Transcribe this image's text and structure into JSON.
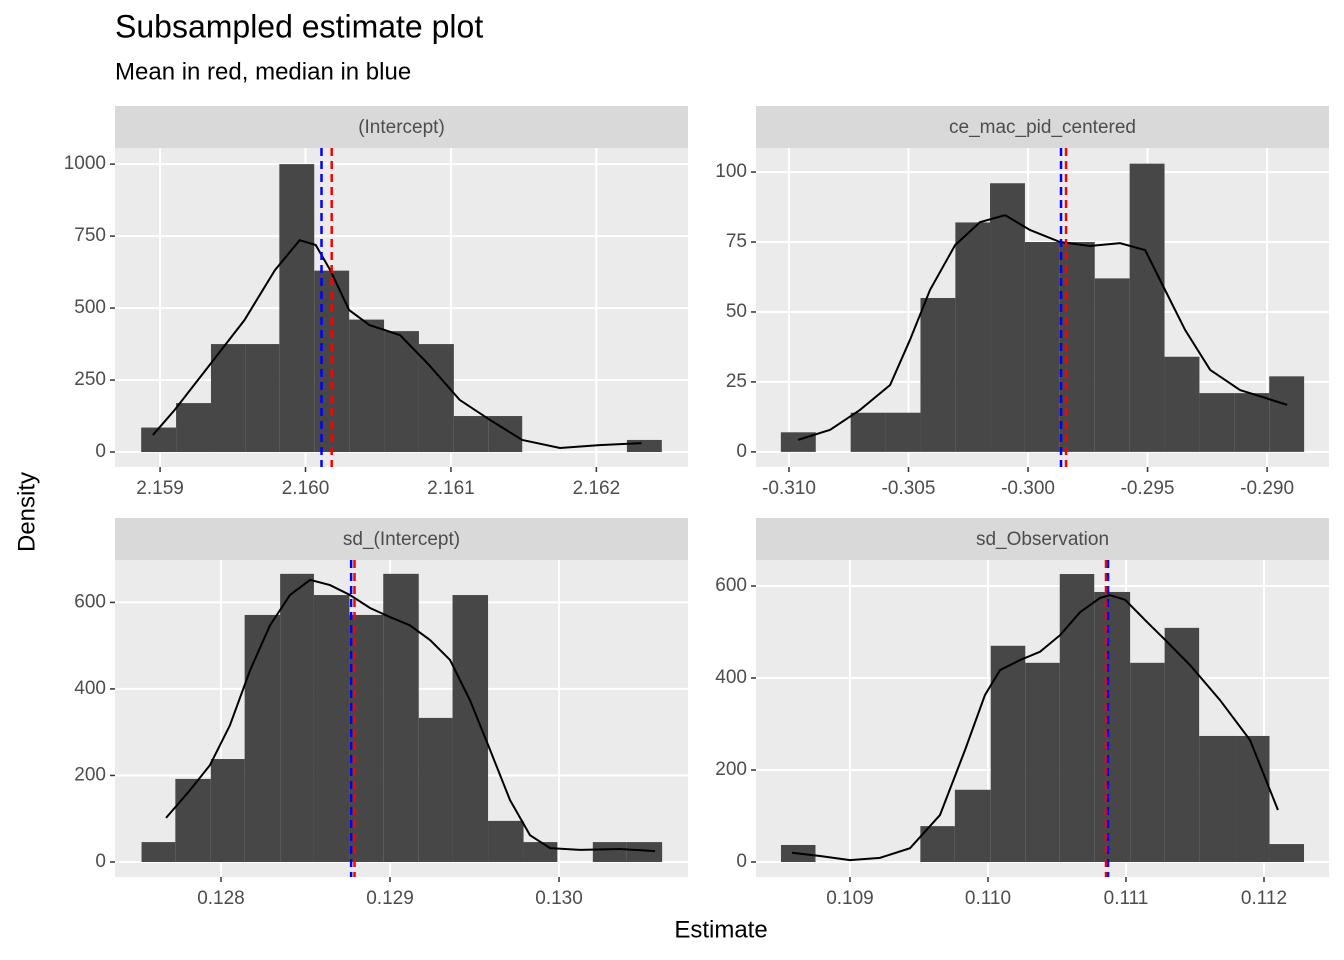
{
  "title": "Subsampled estimate plot",
  "subtitle": "Mean in red, median in blue",
  "x_label": "Estimate",
  "y_label": "Density",
  "chart_data": [
    {
      "type": "histogram",
      "title": "(Intercept)",
      "color": "#474747",
      "bins": [
        2.15887,
        2.15911,
        2.15935,
        2.15959,
        2.15982,
        2.16006,
        2.1603,
        2.16054,
        2.16078,
        2.16102,
        2.16126,
        2.16149,
        2.16173,
        2.16197,
        2.16221,
        2.16245
      ],
      "values": [
        85,
        170,
        375,
        375,
        1000,
        630,
        460,
        420,
        375,
        125,
        125,
        0,
        0,
        0,
        42
      ],
      "density": {
        "x": [
          2.15895,
          2.1591,
          2.15934,
          2.15958,
          2.15979,
          2.15996,
          2.16007,
          2.16017,
          2.1603,
          2.16044,
          2.16065,
          2.16085,
          2.16106,
          2.16127,
          2.16149,
          2.16175,
          2.16202,
          2.16231
        ],
        "values": [
          59,
          146,
          302,
          458,
          632,
          736,
          719,
          632,
          493,
          441,
          406,
          302,
          181,
          111,
          42,
          14,
          24,
          31
        ]
      },
      "mean": 2.16018,
      "median": 2.16011,
      "mean_color": "#ff0000",
      "median_color": "#0000ff",
      "xlim": [
        2.15869,
        2.16263
      ],
      "ylim": [
        -52,
        1056
      ],
      "xticks": [
        2.159,
        {
          "value": 2.16,
          "label": "2.160"
        },
        2.161,
        2.162
      ],
      "yticks": [
        0,
        250,
        500,
        750,
        1000
      ],
      "grid": true
    },
    {
      "type": "histogram",
      "title": "ce_mac_pid_centered",
      "color": "#474747",
      "bins": [
        -0.31034,
        -0.30888,
        -0.30742,
        -0.30596,
        -0.3045,
        -0.30304,
        -0.30159,
        -0.30013,
        -0.29867,
        -0.29721,
        -0.29575,
        -0.29429,
        -0.29283,
        -0.29137,
        -0.28991,
        -0.28845
      ],
      "values": [
        7,
        0,
        14,
        14,
        55,
        82,
        96,
        75,
        75,
        62,
        103,
        34,
        21,
        21,
        27
      ],
      "density": {
        "x": [
          -0.30962,
          -0.30828,
          -0.30703,
          -0.30577,
          -0.30494,
          -0.3041,
          -0.30305,
          -0.30201,
          -0.30096,
          -0.29992,
          -0.29866,
          -0.29741,
          -0.29615,
          -0.2951,
          -0.29427,
          -0.29343,
          -0.29238,
          -0.29113,
          -0.29008,
          -0.28916
        ],
        "values": [
          4.3,
          7.9,
          15,
          23.9,
          40,
          57.9,
          73.9,
          82.1,
          84.6,
          79.3,
          75,
          73.6,
          74.6,
          72.1,
          57.9,
          43.6,
          29.3,
          22.1,
          19.3,
          16.8
        ]
      },
      "mean": -0.29841,
      "median": -0.29862,
      "mean_color": "#ff0000",
      "median_color": "#0000ff",
      "xlim": [
        -0.31138,
        -0.28741
      ],
      "ylim": [
        -5.4,
        108.6
      ],
      "xticks": [
        {
          "value": -0.31,
          "label": "-0.310"
        },
        -0.305,
        {
          "value": -0.3,
          "label": "-0.300"
        },
        -0.295,
        {
          "value": -0.29,
          "label": "-0.290"
        }
      ],
      "yticks": [
        0,
        25,
        50,
        75,
        100
      ],
      "grid": true
    },
    {
      "type": "histogram",
      "title": "sd_(Intercept)",
      "color": "#474747",
      "bins": [
        0.12753,
        0.12773,
        0.12794,
        0.12814,
        0.12835,
        0.12855,
        0.12876,
        0.12896,
        0.12917,
        0.12937,
        0.12958,
        0.12979,
        0.12999,
        0.1302,
        0.1304,
        0.13061
      ],
      "values": [
        46,
        192,
        238,
        571,
        666,
        617,
        571,
        666,
        333,
        617,
        95,
        46,
        0,
        46,
        46
      ],
      "density": {
        "x": [
          0.127675,
          0.127817,
          0.127935,
          0.128053,
          0.128172,
          0.12829,
          0.128408,
          0.128527,
          0.128645,
          0.128763,
          0.128882,
          0.129,
          0.129118,
          0.129237,
          0.129355,
          0.129473,
          0.129592,
          0.12971,
          0.129828,
          0.129947,
          0.130124,
          0.130361,
          0.130568
        ],
        "values": [
          102,
          166,
          224,
          316,
          443,
          547,
          617,
          652,
          640,
          617,
          587,
          566,
          547,
          513,
          467,
          374,
          259,
          143,
          62,
          32,
          28,
          30,
          25
        ]
      },
      "mean": 0.12879,
      "median": 0.12877,
      "mean_color": "#ff0000",
      "median_color": "#0000ff",
      "xlim": [
        0.127373,
        0.130763
      ],
      "ylim": [
        -34.7,
        698
      ],
      "xticks": [
        0.128,
        0.129,
        {
          "value": 0.13,
          "label": "0.130"
        }
      ],
      "yticks": [
        0,
        200,
        400,
        600
      ],
      "grid": true
    },
    {
      "type": "histogram",
      "title": "sd_Observation",
      "color": "#474747",
      "bins": [
        0.1085,
        0.10875,
        0.10901,
        0.10926,
        0.10951,
        0.10976,
        0.11002,
        0.11027,
        0.11052,
        0.11077,
        0.11103,
        0.11128,
        0.11153,
        0.11179,
        0.11204,
        0.11229
      ],
      "values": [
        37,
        0,
        0,
        0,
        78,
        157,
        470,
        433,
        626,
        587,
        433,
        509,
        274,
        274,
        39
      ],
      "density": {
        "x": [
          0.10858,
          0.108783,
          0.109,
          0.109217,
          0.109435,
          0.109652,
          0.109833,
          0.109978,
          0.110087,
          0.110232,
          0.110377,
          0.110522,
          0.110667,
          0.110812,
          0.110884,
          0.110993,
          0.111138,
          0.111283,
          0.111464,
          0.111681,
          0.111899,
          0.112101
        ],
        "values": [
          20,
          13,
          4,
          9,
          30,
          102,
          243,
          363,
          417,
          439,
          457,
          493,
          543,
          574,
          580,
          570,
          526,
          483,
          428,
          352,
          265,
          113
        ]
      },
      "mean": 0.110855,
      "median": 0.11087,
      "mean_color": "#ff0000",
      "median_color": "#0000ff",
      "xlim": [
        0.108319,
        0.112471
      ],
      "ylim": [
        -32.6,
        656.5
      ],
      "xticks": [
        0.109,
        {
          "value": 0.11,
          "label": "0.110"
        },
        0.111,
        0.112
      ],
      "yticks": [
        0,
        200,
        400,
        600
      ],
      "grid": true
    }
  ]
}
